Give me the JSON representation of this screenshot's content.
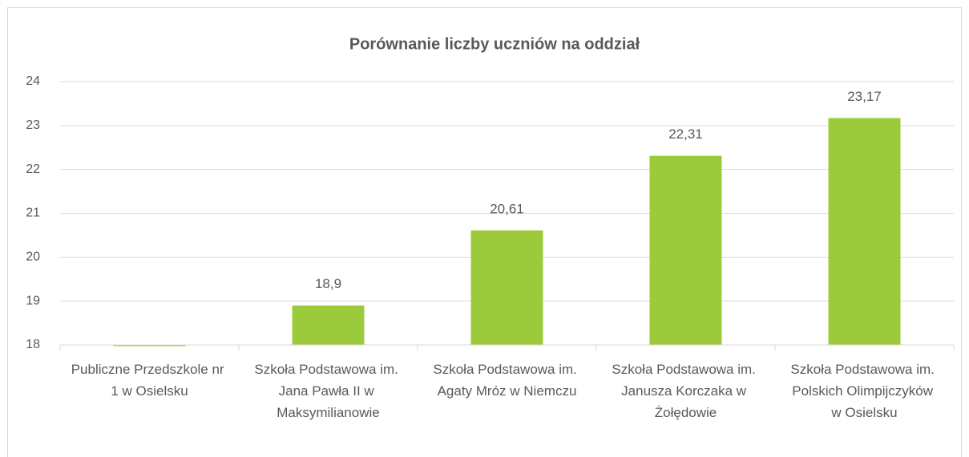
{
  "chart_data": {
    "type": "bar",
    "title": "Porównanie liczby uczniów na oddział",
    "categories": [
      "Publiczne Przedszkole nr 1 w Osielsku",
      "Szkoła Podstawowa im. Jana Pawła II w Maksymilianowie",
      "Szkoła Podstawowa im. Agaty Mróz w Niemczu",
      "Szkoła Podstawowa im. Janusza Korczaka w Żołędowie",
      "Szkoła Podstawowa im. Polskich Olimpijczyków w Osielsku"
    ],
    "values": [
      18,
      18.9,
      20.61,
      22.31,
      23.17
    ],
    "value_labels": [
      null,
      "18,9",
      "20,61",
      "22,31",
      "23,17"
    ],
    "color": "#9bcb3b",
    "ylim": [
      18,
      24
    ],
    "yticks": [
      18,
      19,
      20,
      21,
      22,
      23,
      24
    ],
    "grid": true
  }
}
